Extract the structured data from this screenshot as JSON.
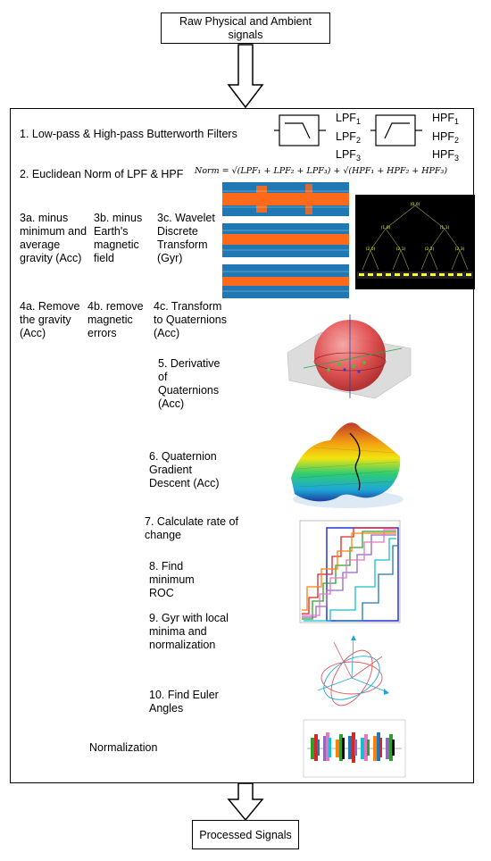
{
  "top_box": "Raw Physical and Ambient signals",
  "bottom_box": "Processed Signals",
  "steps": {
    "s1": "1. Low-pass & High-pass Butterworth Filters",
    "s2": "2. Euclidean Norm of LPF & HPF",
    "s3a": "3a. minus minimum and average gravity (Acc)",
    "s3b": "3b. minus Earth's magnetic field",
    "s3c": "3c. Wavelet Discrete Transform (Gyr)",
    "s4a": "4a. Remove the gravity (Acc)",
    "s4b": "4b. remove magnetic errors",
    "s4c": "4c. Transform to Quaternions (Acc)",
    "s5": "5. Derivative of Quaternions (Acc)",
    "s6": "6. Quaternion Gradient Descent (Acc)",
    "s7": "7. Calculate rate of change",
    "s8": "8. Find minimum ROC",
    "s9": "9. Gyr with local minima and normalization",
    "s10": "10. Find Euler Angles",
    "norm": "Normalization"
  },
  "filters": {
    "lpf": [
      "LPF",
      "LPF",
      "LPF"
    ],
    "hpf": [
      "HPF",
      "HPF",
      "HPF"
    ],
    "subs": [
      "1",
      "2",
      "3"
    ]
  },
  "formula": "Norm = √(LPF₁ + LPF₂ + LPF₃) + √(HPF₁ + HPF₂ + HPF₃)",
  "tree_nodes": [
    "(0,0)",
    "(1,0)",
    "(1,1)",
    "(2,0)",
    "(2,1)",
    "(2,2)",
    "(2,3)"
  ],
  "colors": {
    "signal_blue": "#1f77b4",
    "signal_orange": "#ff6a1a",
    "tree_bg": "#000000",
    "tree_text": "#ffff33"
  }
}
